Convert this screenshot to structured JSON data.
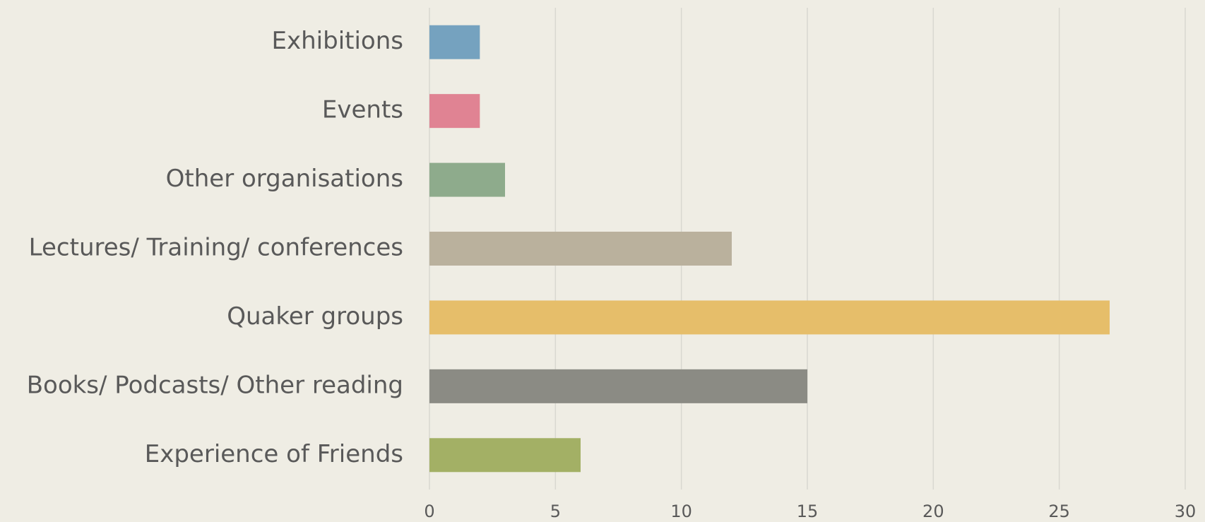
{
  "chart_data": {
    "type": "barh",
    "categories": [
      "Exhibitions",
      "Events",
      "Other organisations",
      "Lectures/ Training/ conferences",
      "Quaker groups",
      "Books/ Podcasts/ Other reading",
      "Experience of Friends"
    ],
    "values": [
      2,
      2,
      3,
      12,
      27,
      15,
      6
    ],
    "colors": [
      "#75a2bf",
      "#e08393",
      "#8eab8c",
      "#bab19d",
      "#e6be6a",
      "#8b8b84",
      "#a3b065"
    ],
    "xlim": [
      0,
      30
    ],
    "xticks": [
      0,
      5,
      10,
      15,
      20,
      25,
      30
    ],
    "grid": true
  }
}
